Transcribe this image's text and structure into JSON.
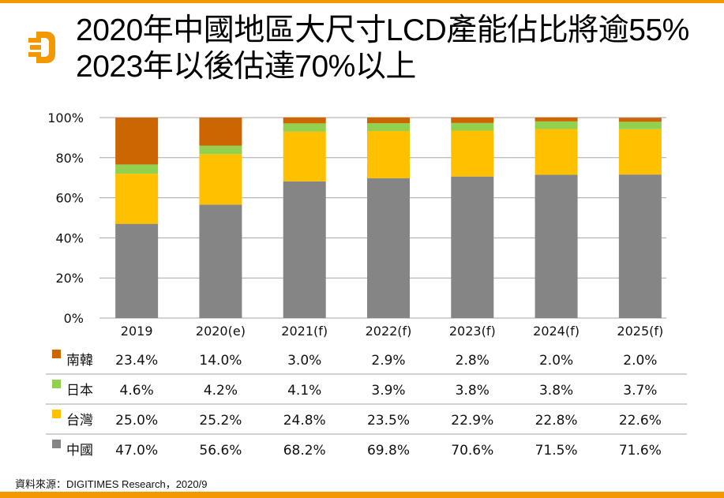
{
  "header": {
    "title_line1": "2020年中國地區大尺寸LCD產能佔比將逾55%",
    "title_line2": "2023年以後估達70%以上",
    "logo_icon": "digitimes-d-logo",
    "accent_color": "#f39800"
  },
  "footer": {
    "source": "資料來源：DIGITIMES Research，2020/9"
  },
  "chart_data": {
    "type": "bar",
    "stacked": true,
    "percent_stacked": true,
    "title": "",
    "xlabel": "",
    "ylabel": "",
    "ylim": [
      0,
      100
    ],
    "yticks": [
      "0%",
      "20%",
      "40%",
      "60%",
      "80%",
      "100%"
    ],
    "ytick_values": [
      0,
      20,
      40,
      60,
      80,
      100
    ],
    "grid": true,
    "categories": [
      "2019",
      "2020(e)",
      "2021(f)",
      "2022(f)",
      "2023(f)",
      "2024(f)",
      "2025(f)"
    ],
    "series": [
      {
        "name": "中國",
        "color": "#858585",
        "values": [
          47.0,
          56.6,
          68.2,
          69.8,
          70.6,
          71.5,
          71.6
        ],
        "labels": [
          "47.0%",
          "56.6%",
          "68.2%",
          "69.8%",
          "70.6%",
          "71.5%",
          "71.6%"
        ]
      },
      {
        "name": "台灣",
        "color": "#ffc000",
        "values": [
          25.0,
          25.2,
          24.8,
          23.5,
          22.9,
          22.8,
          22.6
        ],
        "labels": [
          "25.0%",
          "25.2%",
          "24.8%",
          "23.5%",
          "22.9%",
          "22.8%",
          "22.6%"
        ]
      },
      {
        "name": "日本",
        "color": "#92d050",
        "values": [
          4.6,
          4.2,
          4.1,
          3.9,
          3.8,
          3.8,
          3.7
        ],
        "labels": [
          "4.6%",
          "4.2%",
          "4.1%",
          "3.9%",
          "3.8%",
          "3.8%",
          "3.7%"
        ]
      },
      {
        "name": "南韓",
        "color": "#cc6600",
        "values": [
          23.4,
          14.0,
          3.0,
          2.9,
          2.8,
          2.0,
          2.0
        ],
        "labels": [
          "23.4%",
          "14.0%",
          "3.0%",
          "2.9%",
          "2.8%",
          "2.0%",
          "2.0%"
        ]
      }
    ],
    "data_table": {
      "row_order": [
        "南韓",
        "日本",
        "台灣",
        "中國"
      ]
    },
    "legend": "data-table-left"
  }
}
